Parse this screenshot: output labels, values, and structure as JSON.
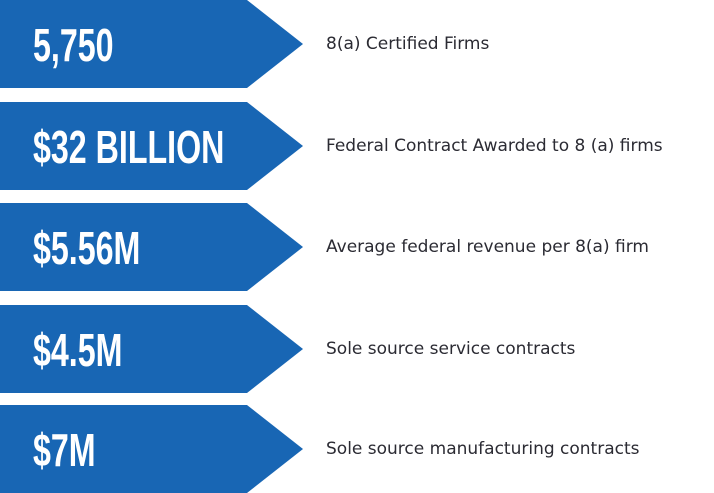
{
  "items": [
    {
      "value": "5,750",
      "label": "8(a) Certified Firms"
    },
    {
      "value": "$32 BILLION",
      "label": "Federal Contract Awarded to 8 (a) firms"
    },
    {
      "value": "$5.56M",
      "label": "Average federal revenue per 8(a) firm"
    },
    {
      "value": "$4.5M",
      "label": "Sole source service contracts"
    },
    {
      "value": "$7M",
      "label": "Sole source manufacturing contracts"
    }
  ]
}
